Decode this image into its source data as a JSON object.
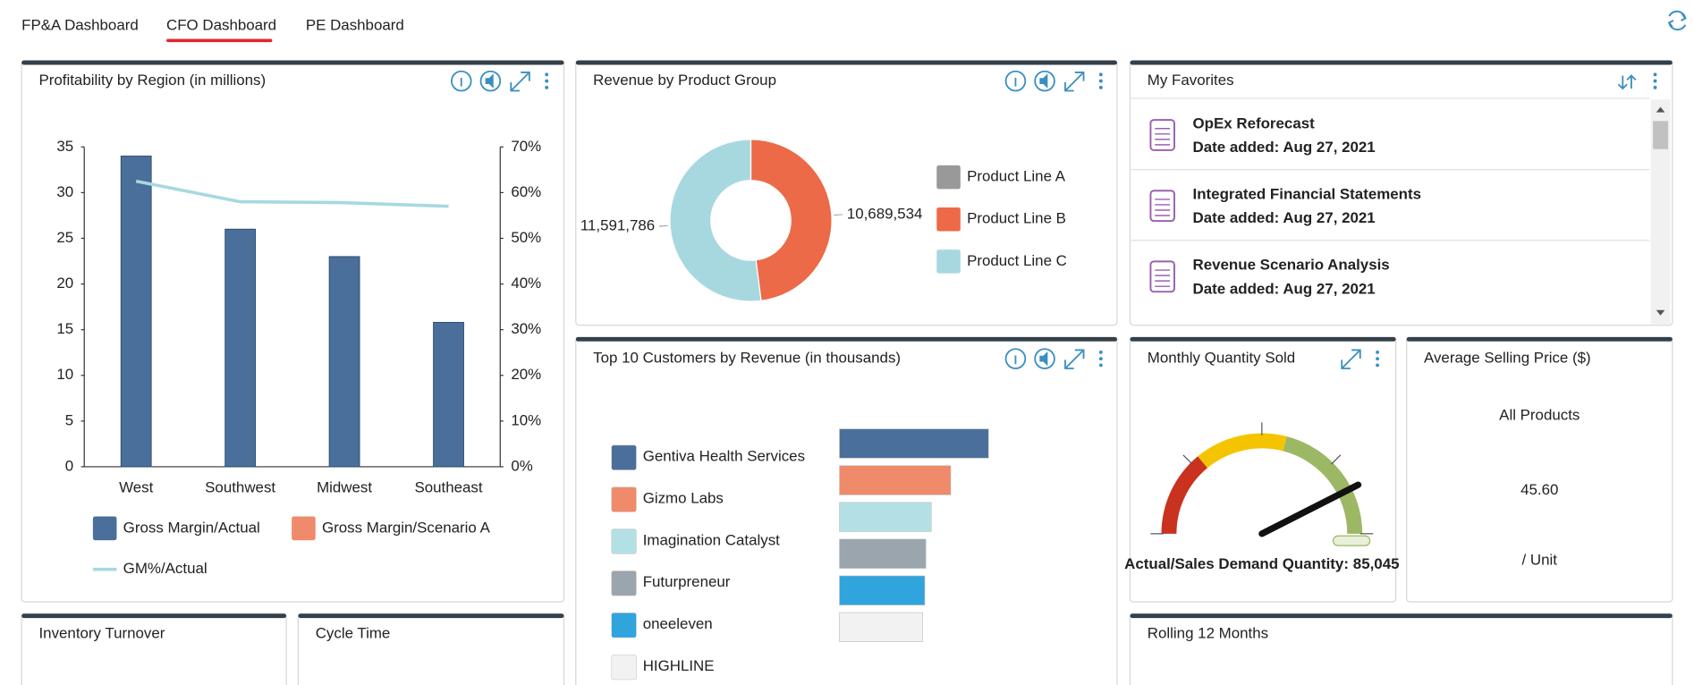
{
  "tabs": {
    "items": [
      "FP&A Dashboard",
      "CFO Dashboard",
      "PE Dashboard"
    ],
    "active": 1
  },
  "panels": [
    "Inventory Turnover",
    "Cycle Time",
    "Rolling 12 Months"
  ],
  "favorites": {
    "title": "My Favorites",
    "items": [
      {
        "name": "OpEx Reforecast",
        "date": "Date added: Aug 27, 2021"
      },
      {
        "name": "Integrated Financial Statements",
        "date": "Date added: Aug 27, 2021"
      },
      {
        "name": "Revenue Scenario Analysis",
        "date": "Date added: Aug 27, 2021"
      }
    ]
  },
  "asp_card": {
    "title": "Average Selling Price ($)",
    "subtitle": "All Products",
    "value": 45.6,
    "value_label": "45.60",
    "unit": "/ Unit"
  },
  "chart_data": [
    {
      "type": "bar",
      "title": "Profitability by Region (in millions)",
      "categories": [
        "West",
        "Southwest",
        "Midwest",
        "Southeast"
      ],
      "series": [
        {
          "name": "Gross Margin/Actual",
          "color": "#4a6f9a",
          "values": [
            34,
            26,
            23,
            15.8
          ]
        },
        {
          "name": "Gross Margin/Scenario A",
          "color": "#ef8a6a",
          "values": [
            null,
            null,
            null,
            null
          ]
        },
        {
          "name": "GM%/Actual",
          "color": "#a8d8e0",
          "type": "line",
          "axis": "y2",
          "values": [
            62.5,
            58,
            57.8,
            57
          ]
        }
      ],
      "ylim": [
        0,
        35
      ],
      "yticks": [
        0,
        5,
        10,
        15,
        20,
        25,
        30,
        35
      ],
      "y2lim": [
        0,
        70
      ],
      "y2ticks": [
        {
          "value": 0,
          "label": "0%"
        },
        {
          "value": 10,
          "label": "10%"
        },
        {
          "value": 20,
          "label": "20%"
        },
        {
          "value": 30,
          "label": "30%"
        },
        {
          "value": 40,
          "label": "40%"
        },
        {
          "value": 50,
          "label": "50%"
        },
        {
          "value": 60,
          "label": "60%"
        },
        {
          "value": 70,
          "label": "70%"
        }
      ]
    },
    {
      "type": "pie",
      "title": "Revenue by Product Group",
      "categories": [
        "Product Line A",
        "Product Line B",
        "Product Line C"
      ],
      "values": [
        null,
        10689534,
        11591786
      ],
      "value_labels": [
        null,
        "10,689,534",
        "11,591,786"
      ],
      "colors": [
        "#999999",
        "#ec6a47",
        "#a8d8df"
      ],
      "donut": true
    },
    {
      "type": "hbar",
      "title": "Top 10 Customers by Revenue (in thousands)",
      "categories": [
        "Gentiva Health Services",
        "Gizmo Labs",
        "Imagination Catalyst",
        "Futurpreneur",
        "oneeleven",
        "HIGHLINE"
      ],
      "values": [
        1380,
        1030,
        850,
        800,
        790,
        770
      ],
      "colors": [
        "#4a6f9a",
        "#ef8a6a",
        "#b3e0e5",
        "#9aa5ad",
        "#2fa4dd",
        "#f2f2f2"
      ]
    },
    {
      "type": "gauge",
      "title": "Monthly Quantity Sold",
      "label": "Actual/Sales Demand Quantity:",
      "value": 85045,
      "value_label": "85,045",
      "range": [
        0,
        100000
      ],
      "bands": [
        {
          "to": 28000,
          "color": "#c8321e"
        },
        {
          "to": 58000,
          "color": "#f5c400"
        },
        {
          "to": 100000,
          "color": "#9cb865"
        }
      ]
    }
  ]
}
